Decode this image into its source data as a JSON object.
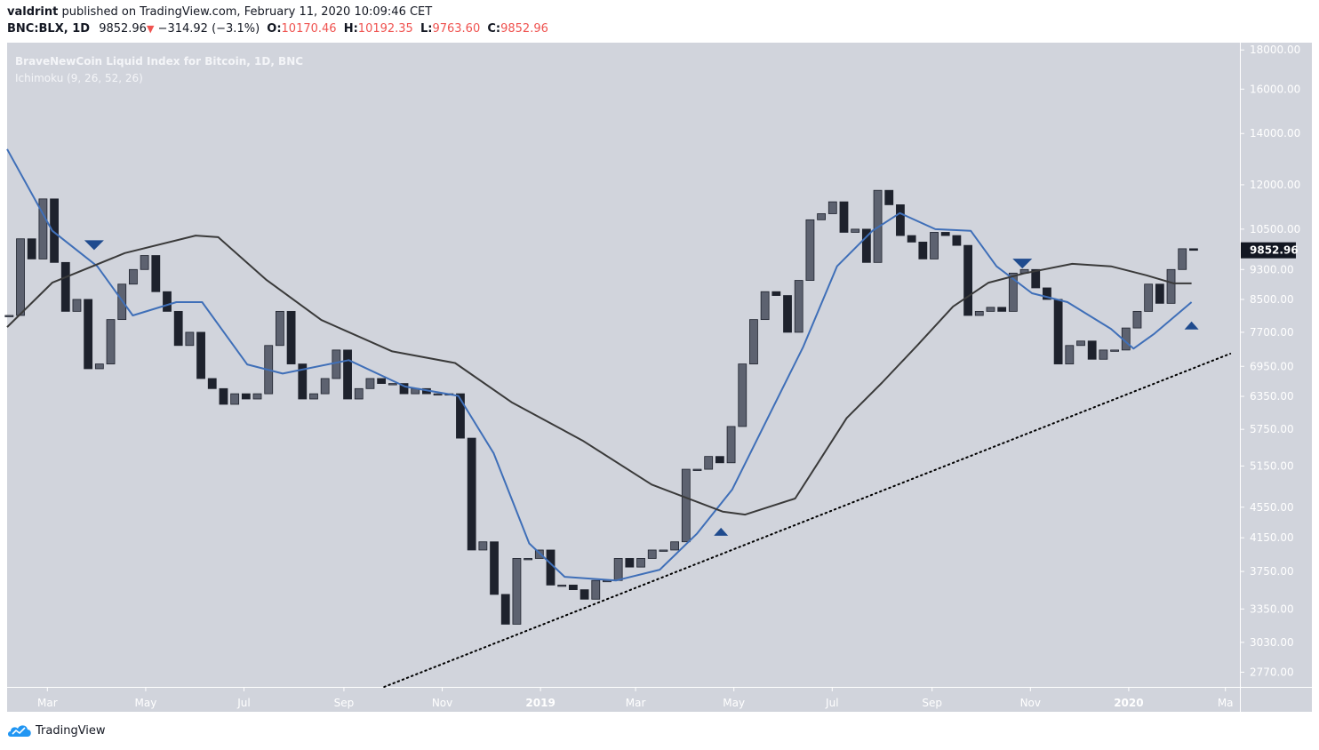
{
  "header": {
    "author": "valdrint",
    "published_text": "published on TradingView.com, February 11, 2020 10:09:46 CET",
    "symbol": "BNC:BLX, 1D",
    "last": "9852.96",
    "change": "−314.92 (−3.1%)",
    "open_label": "O:",
    "open": "10170.46",
    "high_label": "H:",
    "high": "10192.35",
    "low_label": "L:",
    "low": "9763.60",
    "close_label": "C:",
    "close": "9852.96"
  },
  "legend": {
    "title": "BraveNewCoin Liquid Index for Bitcoin, 1D, BNC",
    "indicator": "Ichimoku (9, 26, 52, 26)"
  },
  "footer": {
    "brand": "TradingView"
  },
  "colors": {
    "background": "#d1d4dc",
    "candle_down": "#1e222d",
    "candle_up": "#5d6270",
    "kijun_line": "#3f6fb8",
    "slow_line": "#3a3a3a",
    "marker": "#1f4b8e",
    "trendline": "#000000",
    "negative": "#ef5350"
  },
  "chart_data": {
    "type": "candlestick",
    "y_scale": "log",
    "ylim": [
      2650,
      18400
    ],
    "xlim": [
      "2018-02-04",
      "2020-03-10"
    ],
    "grid": false,
    "y_ticks": [
      "18000.00",
      "16000.00",
      "14000.00",
      "12000.00",
      "10500.00",
      "9300.00",
      "8500.00",
      "7700.00",
      "6950.00",
      "6350.00",
      "5750.00",
      "5150.00",
      "4550.00",
      "4150.00",
      "3750.00",
      "3350.00",
      "3030.00",
      "2770.00"
    ],
    "x_ticks": [
      {
        "date": "2018-03-01",
        "label": "Mar",
        "bold": false
      },
      {
        "date": "2018-05-01",
        "label": "May",
        "bold": false
      },
      {
        "date": "2018-07-01",
        "label": "Jul",
        "bold": false
      },
      {
        "date": "2018-09-01",
        "label": "Sep",
        "bold": false
      },
      {
        "date": "2018-11-01",
        "label": "Nov",
        "bold": false
      },
      {
        "date": "2019-01-01",
        "label": "2019",
        "bold": true
      },
      {
        "date": "2019-03-01",
        "label": "Mar",
        "bold": false
      },
      {
        "date": "2019-05-01",
        "label": "May",
        "bold": false
      },
      {
        "date": "2019-07-01",
        "label": "Jul",
        "bold": false
      },
      {
        "date": "2019-09-01",
        "label": "Sep",
        "bold": false
      },
      {
        "date": "2019-11-01",
        "label": "Nov",
        "bold": false
      },
      {
        "date": "2020-01-01",
        "label": "2020",
        "bold": true
      },
      {
        "date": "2020-03-01",
        "label": "Ma",
        "bold": false
      }
    ],
    "last_price_label": "9852.96",
    "price": {
      "interval": "1W",
      "start": "2018-02-05",
      "closes": [
        8100,
        10200,
        9600,
        11500,
        9500,
        8200,
        8500,
        6900,
        7000,
        8000,
        8900,
        9300,
        9700,
        8700,
        8200,
        7400,
        7700,
        6700,
        6500,
        6200,
        6400,
        6300,
        6400,
        7400,
        8200,
        7000,
        6300,
        6400,
        6700,
        7300,
        6300,
        6500,
        6700,
        6600,
        6600,
        6400,
        6500,
        6400,
        6400,
        6400,
        5600,
        4000,
        4100,
        3500,
        3200,
        3900,
        3900,
        4000,
        3600,
        3600,
        3550,
        3450,
        3650,
        3650,
        3900,
        3800,
        3900,
        4000,
        4000,
        4100,
        5100,
        5100,
        5300,
        5200,
        5800,
        7000,
        8000,
        8700,
        8600,
        7700,
        9000,
        10800,
        11000,
        11400,
        10400,
        10500,
        9500,
        11800,
        11300,
        10300,
        10100,
        9600,
        10400,
        10300,
        10000,
        8100,
        8200,
        8300,
        8200,
        9200,
        9300,
        8800,
        8500,
        7000,
        7400,
        7500,
        7100,
        7300,
        7300,
        7800,
        8200,
        8900,
        8400,
        9300,
        9900,
        9853
      ]
    },
    "series": [
      {
        "key": "kijun",
        "points": [
          [
            "2018-02-04",
            13360
          ],
          [
            "2018-03-04",
            10450
          ],
          [
            "2018-04-01",
            9390
          ],
          [
            "2018-04-23",
            8100
          ],
          [
            "2018-05-20",
            8430
          ],
          [
            "2018-06-05",
            8430
          ],
          [
            "2018-07-03",
            6990
          ],
          [
            "2018-07-25",
            6800
          ],
          [
            "2018-09-04",
            7080
          ],
          [
            "2018-10-09",
            6540
          ],
          [
            "2018-11-11",
            6360
          ],
          [
            "2018-12-03",
            5350
          ],
          [
            "2018-12-25",
            4080
          ],
          [
            "2019-01-16",
            3690
          ],
          [
            "2019-02-17",
            3650
          ],
          [
            "2019-03-16",
            3770
          ],
          [
            "2019-04-08",
            4200
          ],
          [
            "2019-04-30",
            4800
          ],
          [
            "2019-05-22",
            5950
          ],
          [
            "2019-06-13",
            7370
          ],
          [
            "2019-07-04",
            9390
          ],
          [
            "2019-07-26",
            10450
          ],
          [
            "2019-08-12",
            11020
          ],
          [
            "2019-09-03",
            10500
          ],
          [
            "2019-09-25",
            10450
          ],
          [
            "2019-10-11",
            9390
          ],
          [
            "2019-11-02",
            8660
          ],
          [
            "2019-11-24",
            8430
          ],
          [
            "2019-12-21",
            7780
          ],
          [
            "2020-01-04",
            7330
          ],
          [
            "2020-01-17",
            7670
          ],
          [
            "2020-02-09",
            8430
          ]
        ]
      },
      {
        "key": "slow",
        "points": [
          [
            "2018-02-04",
            7820
          ],
          [
            "2018-03-04",
            8940
          ],
          [
            "2018-04-18",
            9770
          ],
          [
            "2018-06-01",
            10300
          ],
          [
            "2018-06-15",
            10250
          ],
          [
            "2018-07-15",
            9010
          ],
          [
            "2018-08-18",
            7990
          ],
          [
            "2018-10-01",
            7270
          ],
          [
            "2018-11-09",
            7020
          ],
          [
            "2018-12-14",
            6240
          ],
          [
            "2019-01-27",
            5560
          ],
          [
            "2019-03-11",
            4870
          ],
          [
            "2019-04-24",
            4490
          ],
          [
            "2019-05-08",
            4450
          ],
          [
            "2019-06-08",
            4670
          ],
          [
            "2019-06-24",
            5270
          ],
          [
            "2019-07-10",
            5950
          ],
          [
            "2019-08-01",
            6620
          ],
          [
            "2019-08-23",
            7410
          ],
          [
            "2019-09-14",
            8320
          ],
          [
            "2019-10-06",
            8940
          ],
          [
            "2019-10-28",
            9190
          ],
          [
            "2019-11-27",
            9460
          ],
          [
            "2019-12-21",
            9390
          ],
          [
            "2020-01-12",
            9140
          ],
          [
            "2020-01-29",
            8920
          ],
          [
            "2020-02-09",
            8920
          ]
        ]
      }
    ],
    "trendline": {
      "style": "dotted",
      "from": [
        "2018-09-26",
        2650
      ],
      "to": [
        "2020-03-04",
        7220
      ]
    },
    "markers": [
      {
        "type": "arrow-down",
        "date": "2018-03-30",
        "price": 10020
      },
      {
        "type": "arrow-up",
        "date": "2019-04-23",
        "price": 4220
      },
      {
        "type": "arrow-down",
        "date": "2019-10-27",
        "price": 9480
      },
      {
        "type": "arrow-up",
        "date": "2020-02-09",
        "price": 7850
      }
    ]
  }
}
